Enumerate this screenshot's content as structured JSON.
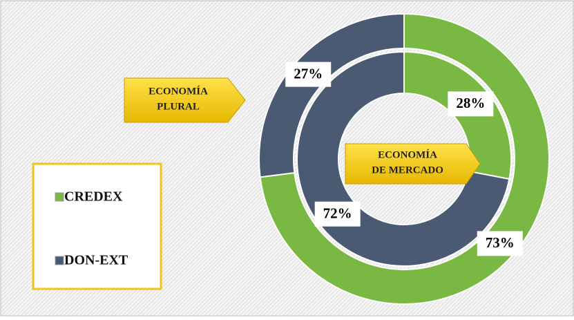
{
  "chart_data": {
    "type": "donut",
    "categories": [
      "CREDEX",
      "DON-EXT"
    ],
    "colors": [
      "#78b843",
      "#4a5a72"
    ],
    "rings": [
      {
        "values": [
          73,
          27
        ],
        "value_labels": [
          "73%",
          "27%"
        ]
      },
      {
        "values": [
          28,
          72
        ],
        "value_labels": [
          "28%",
          "72%"
        ]
      }
    ],
    "annotations": [
      {
        "lines": [
          "ECONOMÍA",
          "PLURAL"
        ]
      },
      {
        "lines": [
          "ECONOMÍA",
          "DE MERCADO"
        ]
      }
    ],
    "legend": "left"
  }
}
